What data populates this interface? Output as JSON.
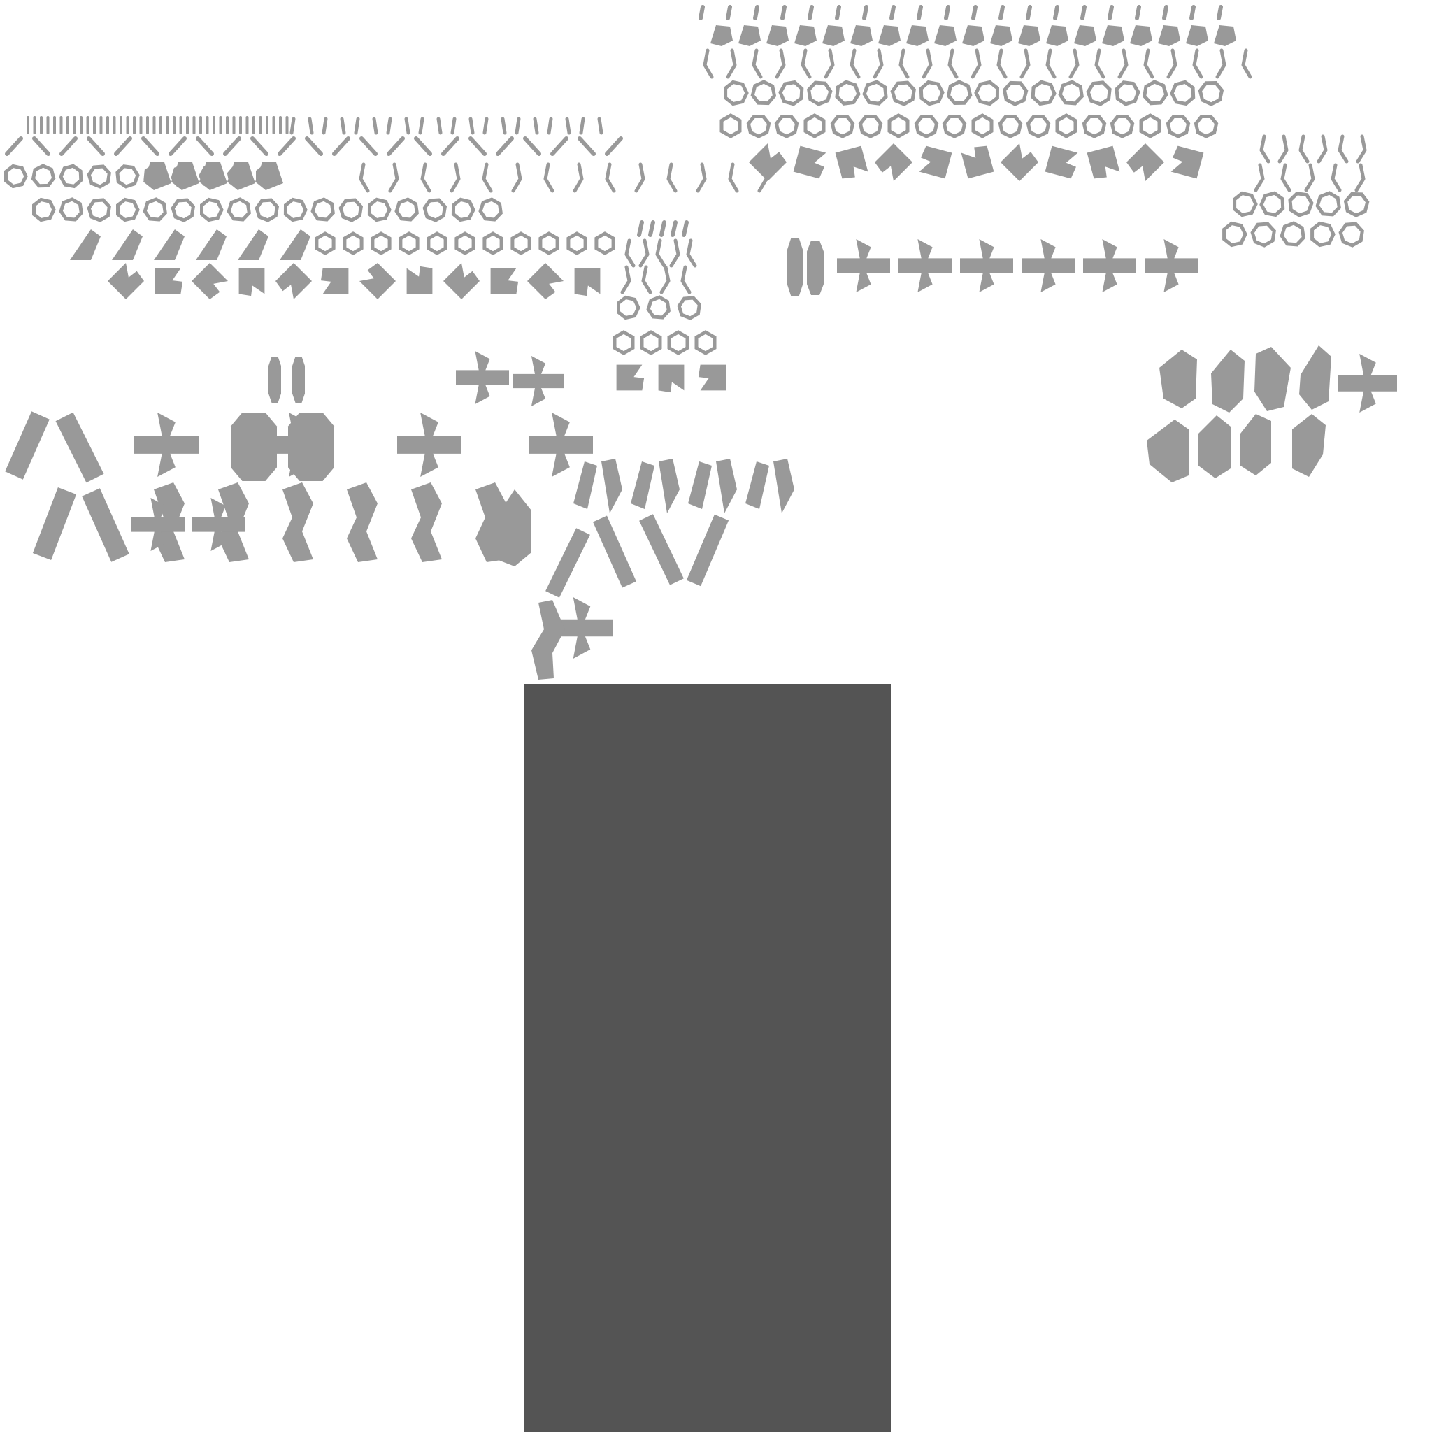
{
  "colors": {
    "background": "#ffffff",
    "piece": "#999999",
    "panel": "#545454"
  },
  "icons": [
    "hexagon-ring-icon",
    "heptagon-ring-icon",
    "diagonal-stroke-icon",
    "bracket-stroke-icon",
    "chevron-arrow-icon",
    "crossed-arrow-icon",
    "slanted-bar-icon",
    "notched-block-icon"
  ]
}
